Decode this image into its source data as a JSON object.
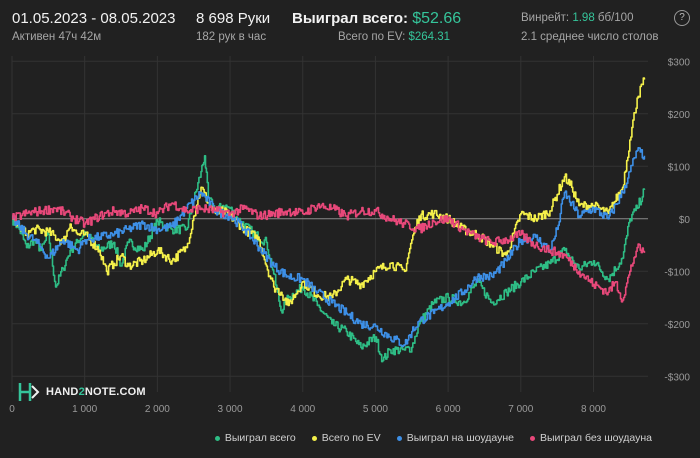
{
  "header": {
    "date_range": "01.05.2023 - 08.05.2023",
    "active_time": "Активен 47ч 42м",
    "hands": "8 698 Руки",
    "hands_per_hour": "182 рук в час",
    "won_total_label": "Выиграл всего:",
    "won_total_value": "$52.66",
    "ev_total_label": "Всего по EV:",
    "ev_total_value": "$264.31",
    "winrate_label": "Винрейт:",
    "winrate_value": "1.98",
    "winrate_unit": "бб/100",
    "avg_tables": "2.1 среднее число столов",
    "help_icon": "?"
  },
  "logo": {
    "prefix": "HAND",
    "two": "2",
    "suffix": "NOTE.COM"
  },
  "colors": {
    "won_total": "#2ebd85",
    "ev": "#f4f04a",
    "showdown": "#3d8fe6",
    "non_showdown": "#e8487a",
    "background": "#212121",
    "grid": "#333333"
  },
  "chart_data": {
    "type": "line",
    "xlabel": "",
    "ylabel": "",
    "xlim": [
      0,
      8750
    ],
    "ylim": [
      -330,
      310
    ],
    "x_ticks": [
      0,
      1000,
      2000,
      3000,
      4000,
      5000,
      6000,
      7000,
      8000
    ],
    "x_tick_labels": [
      "0",
      "1 000",
      "2 000",
      "3 000",
      "4 000",
      "5 000",
      "6 000",
      "7 000",
      "8 000"
    ],
    "y_ticks": [
      300,
      200,
      100,
      0,
      -100,
      -200,
      -300
    ],
    "y_tick_labels": [
      "$300",
      "$200",
      "$100",
      "$0",
      "-$100",
      "-$200",
      "-$300"
    ],
    "grid": true,
    "legend_position": "bottom-right",
    "series": [
      {
        "name": "Выиграл всего",
        "x": [
          0,
          100,
          200,
          300,
          400,
          500,
          600,
          700,
          800,
          900,
          1000,
          1200,
          1400,
          1500,
          1600,
          1800,
          2000,
          2200,
          2400,
          2500,
          2600,
          2650,
          2700,
          2800,
          2900,
          3000,
          3100,
          3300,
          3500,
          3600,
          3700,
          3800,
          4000,
          4200,
          4400,
          4600,
          4800,
          5000,
          5100,
          5200,
          5400,
          5500,
          5600,
          5800,
          6000,
          6200,
          6400,
          6600,
          6800,
          7000,
          7200,
          7400,
          7600,
          7800,
          8000,
          8200,
          8400,
          8500,
          8600,
          8700
        ],
        "values": [
          0,
          -20,
          -55,
          -40,
          -60,
          -30,
          -130,
          -95,
          -60,
          -45,
          -25,
          -60,
          -45,
          -90,
          -45,
          -60,
          -5,
          -20,
          -20,
          35,
          90,
          120,
          40,
          15,
          25,
          20,
          0,
          -25,
          -45,
          -105,
          -175,
          -150,
          -130,
          -165,
          -200,
          -215,
          -245,
          -225,
          -270,
          -250,
          -250,
          -245,
          -200,
          -160,
          -150,
          -160,
          -120,
          -160,
          -140,
          -120,
          -100,
          -85,
          -60,
          -95,
          -80,
          -115,
          -75,
          0,
          20,
          55
        ]
      },
      {
        "name": "Всего по EV",
        "x": [
          0,
          100,
          200,
          300,
          500,
          700,
          800,
          900,
          1000,
          1200,
          1300,
          1400,
          1500,
          1600,
          1800,
          2000,
          2200,
          2400,
          2500,
          2600,
          2700,
          2800,
          2900,
          3000,
          3200,
          3400,
          3500,
          3600,
          3700,
          3800,
          4000,
          4200,
          4400,
          4600,
          4800,
          5000,
          5200,
          5400,
          5500,
          5600,
          5800,
          6000,
          6200,
          6400,
          6600,
          6800,
          7000,
          7200,
          7400,
          7600,
          7700,
          7800,
          8000,
          8200,
          8400,
          8500,
          8600,
          8700
        ],
        "values": [
          0,
          -15,
          -30,
          -20,
          -25,
          -45,
          -10,
          -30,
          -30,
          -60,
          -100,
          -85,
          -70,
          -90,
          -80,
          -60,
          -80,
          -55,
          5,
          60,
          30,
          10,
          15,
          5,
          -20,
          -40,
          -90,
          -130,
          -140,
          -165,
          -120,
          -145,
          -150,
          -115,
          -125,
          -100,
          -85,
          -100,
          -40,
          5,
          10,
          0,
          -20,
          -30,
          -50,
          -70,
          10,
          0,
          15,
          80,
          60,
          25,
          25,
          10,
          60,
          150,
          230,
          265
        ]
      },
      {
        "name": "Выиграл на шоудауне",
        "x": [
          0,
          100,
          200,
          300,
          400,
          500,
          700,
          900,
          1000,
          1200,
          1400,
          1600,
          1800,
          2000,
          2200,
          2400,
          2600,
          2800,
          3000,
          3200,
          3400,
          3600,
          3800,
          4000,
          4200,
          4400,
          4600,
          4800,
          5000,
          5200,
          5400,
          5500,
          5600,
          5800,
          6000,
          6200,
          6400,
          6600,
          6800,
          7000,
          7200,
          7400,
          7500,
          7600,
          7800,
          8000,
          8200,
          8400,
          8500,
          8600,
          8700
        ],
        "values": [
          0,
          -15,
          -30,
          -40,
          -55,
          -75,
          -40,
          -60,
          -40,
          -35,
          -30,
          -20,
          -10,
          -20,
          -15,
          20,
          50,
          15,
          5,
          -20,
          -55,
          -90,
          -110,
          -115,
          -140,
          -160,
          -180,
          -200,
          -205,
          -225,
          -240,
          -215,
          -195,
          -180,
          -160,
          -140,
          -110,
          -110,
          -80,
          -40,
          -35,
          -60,
          -20,
          50,
          5,
          20,
          0,
          50,
          90,
          130,
          120
        ]
      },
      {
        "name": "Выиграл без шоудауна",
        "x": [
          0,
          200,
          400,
          600,
          800,
          1000,
          1200,
          1400,
          1600,
          1800,
          2000,
          2200,
          2400,
          2600,
          2800,
          3000,
          3200,
          3400,
          3600,
          3800,
          4000,
          4200,
          4400,
          4600,
          4800,
          5000,
          5200,
          5400,
          5600,
          5800,
          6000,
          6200,
          6400,
          6600,
          6800,
          7000,
          7200,
          7400,
          7600,
          7800,
          8000,
          8200,
          8300,
          8400,
          8500,
          8600,
          8700
        ],
        "values": [
          0,
          10,
          15,
          20,
          5,
          -10,
          5,
          15,
          10,
          20,
          10,
          30,
          15,
          20,
          15,
          10,
          20,
          5,
          10,
          15,
          10,
          25,
          20,
          5,
          15,
          15,
          0,
          -10,
          -20,
          -5,
          0,
          -20,
          -35,
          -45,
          -40,
          -30,
          -50,
          -60,
          -70,
          -100,
          -125,
          -140,
          -120,
          -155,
          -100,
          -55,
          -65
        ]
      }
    ]
  },
  "legend": [
    {
      "name": "Выиграл всего",
      "color": "#2ebd85"
    },
    {
      "name": "Всего по EV",
      "color": "#f4f04a"
    },
    {
      "name": "Выиграл на шоудауне",
      "color": "#3d8fe6"
    },
    {
      "name": "Выиграл без шоудауна",
      "color": "#e8487a"
    }
  ]
}
